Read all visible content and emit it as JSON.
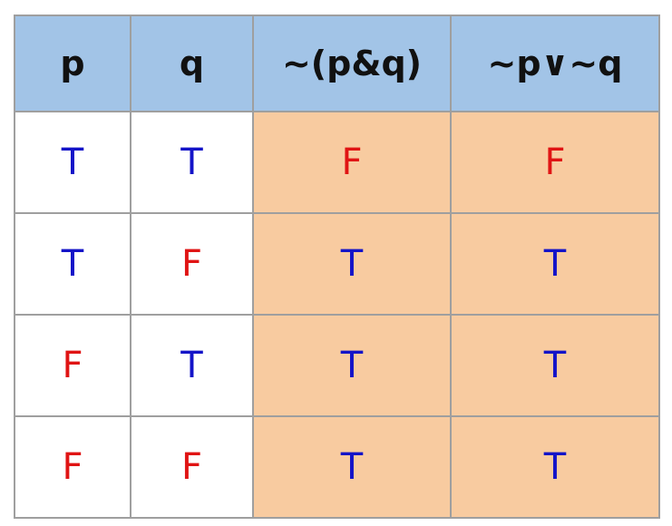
{
  "colors": {
    "header_bg": "#a2c4e7",
    "result_bg": "#f8cba0",
    "input_bg": "#ffffff",
    "true_color": "#1414c8",
    "false_color": "#e01414",
    "border": "#9f9f9f"
  },
  "table": {
    "headers": [
      "p",
      "q",
      "~(p&q)",
      "~p∨~q"
    ],
    "rows": [
      [
        "T",
        "T",
        "F",
        "F"
      ],
      [
        "T",
        "F",
        "T",
        "T"
      ],
      [
        "F",
        "T",
        "T",
        "T"
      ],
      [
        "F",
        "F",
        "T",
        "T"
      ]
    ]
  }
}
